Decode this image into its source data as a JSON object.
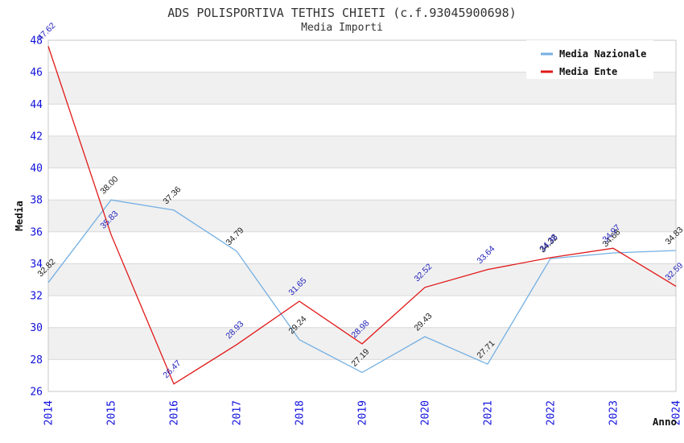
{
  "header": {
    "title": "ADS POLISPORTIVA TETHIS CHIETI (c.f.93045900698)",
    "subtitle": "Media Importi"
  },
  "legend": {
    "items": [
      {
        "label": "Media Nazionale",
        "color": "#74afe2"
      },
      {
        "label": "Media Ente",
        "color": "#e11818"
      }
    ],
    "position": "top-right"
  },
  "chart_data": {
    "type": "line",
    "x": [
      2014,
      2015,
      2016,
      2017,
      2018,
      2019,
      2020,
      2021,
      2022,
      2023,
      2024
    ],
    "series": [
      {
        "name": "Media Nazionale",
        "color": "#74afe2",
        "label_color": "#1a1a1a",
        "values": [
          32.82,
          38.0,
          37.36,
          34.79,
          29.24,
          27.19,
          29.43,
          27.71,
          34.32,
          34.68,
          34.83
        ]
      },
      {
        "name": "Media Ente",
        "color": "#e11818",
        "label_color": "#2222bb",
        "values": [
          47.62,
          35.83,
          26.47,
          28.93,
          31.65,
          28.98,
          32.52,
          33.64,
          34.38,
          34.97,
          32.59
        ]
      }
    ],
    "title": "ADS POLISPORTIVA TETHIS CHIETI (c.f.93045900698)",
    "subtitle": "Media Importi",
    "xlabel": "Anno",
    "ylabel": "Media",
    "ylim": [
      26,
      48
    ],
    "ytick_step": 2,
    "yticks": [
      26,
      28,
      30,
      32,
      34,
      36,
      38,
      40,
      42,
      44,
      46,
      48
    ],
    "grid": "horizontal",
    "alternating_bands": true,
    "legend_position": "top-right"
  },
  "style": {
    "tick_color": "#1111dd",
    "band_color": "#f0f0f0",
    "grid_color": "#d9d9d9",
    "border_color": "#c9c9c9",
    "axis_title_color": "#111111",
    "title_color": "#333333",
    "legend_bg": "#ffffff",
    "legend_text_color": "#111111"
  }
}
